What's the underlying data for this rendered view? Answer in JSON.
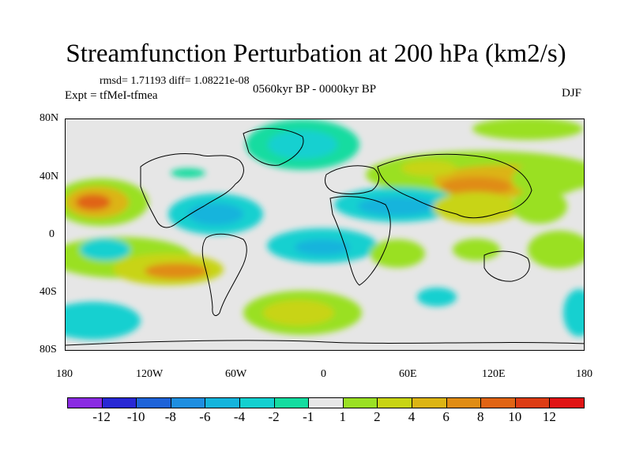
{
  "title": "Streamfunction Perturbation at 200 hPa (km2/s)",
  "stats_line": "rmsd= 1.71193 diff= 1.08221e-08",
  "experiment": "Expt = tfMeI-tfmea",
  "period": "0560kyr BP - 0000kyr BP",
  "season": "DJF",
  "lat_labels": [
    "80N",
    "40N",
    "0",
    "40S",
    "80S"
  ],
  "lon_labels": [
    "180",
    "120W",
    "60W",
    "0",
    "60E",
    "120E",
    "180"
  ],
  "colorbar": {
    "levels": [
      "-12",
      "-10",
      "-8",
      "-6",
      "-4",
      "-2",
      "-1",
      "1",
      "2",
      "4",
      "6",
      "8",
      "10",
      "12"
    ],
    "colors": [
      "#8a2be2",
      "#2828d4",
      "#1e63d8",
      "#1e8ee0",
      "#14b4dc",
      "#14d0d0",
      "#14dca0",
      "#e6e6e6",
      "#9ae024",
      "#c8d414",
      "#dcb414",
      "#e08c14",
      "#e06414",
      "#dc3c14",
      "#e01414"
    ]
  }
}
